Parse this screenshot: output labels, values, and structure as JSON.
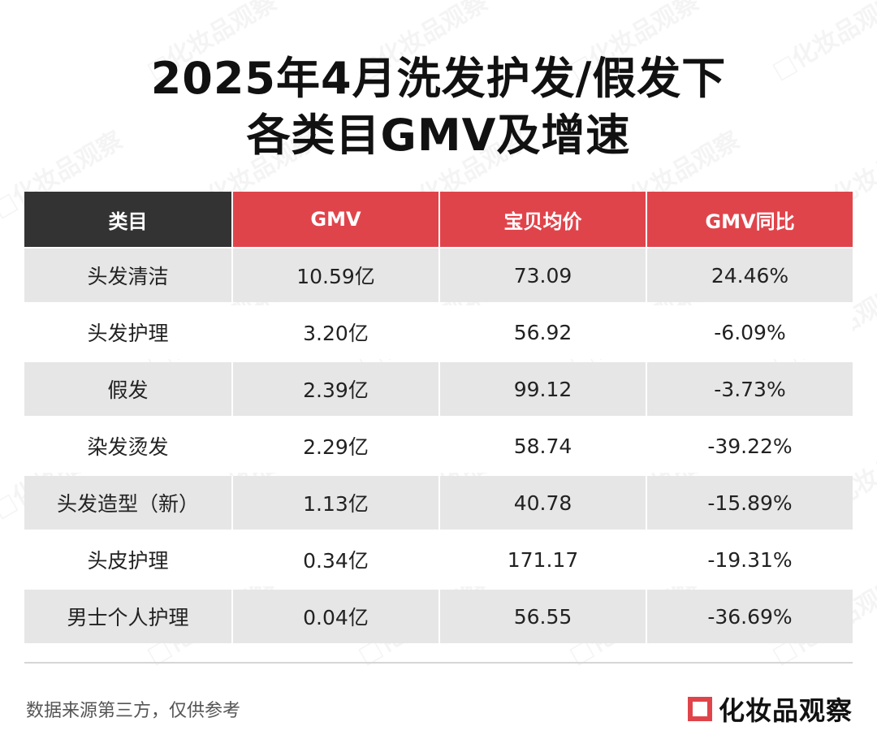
{
  "title_line1": "2025年4月洗发护发/假发下",
  "title_line2": "各类目GMV及增速",
  "chart_data": {
    "type": "table",
    "columns": [
      "类目",
      "GMV",
      "宝贝均价",
      "GMV同比"
    ],
    "rows": [
      [
        "头发清洁",
        "10.59亿",
        "73.09",
        "24.46%"
      ],
      [
        "头发护理",
        "3.20亿",
        "56.92",
        "-6.09%"
      ],
      [
        "假发",
        "2.39亿",
        "99.12",
        "-3.73%"
      ],
      [
        "染发烫发",
        "2.29亿",
        "58.74",
        "-39.22%"
      ],
      [
        "头发造型（新）",
        "1.13亿",
        "40.78",
        "-15.89%"
      ],
      [
        "头皮护理",
        "0.34亿",
        "171.17",
        "-19.31%"
      ],
      [
        "男士个人护理",
        "0.04亿",
        "56.55",
        "-36.69%"
      ]
    ]
  },
  "footer": {
    "source_note": "数据来源第三方，仅供参考",
    "brand": "化妆品观察",
    "brand_icon": "brand-square-icon"
  },
  "watermark_text": "化妆品观察",
  "colors": {
    "header_red": "#e0444b",
    "header_dark": "#333333",
    "row_gray": "#e6e6e6"
  }
}
